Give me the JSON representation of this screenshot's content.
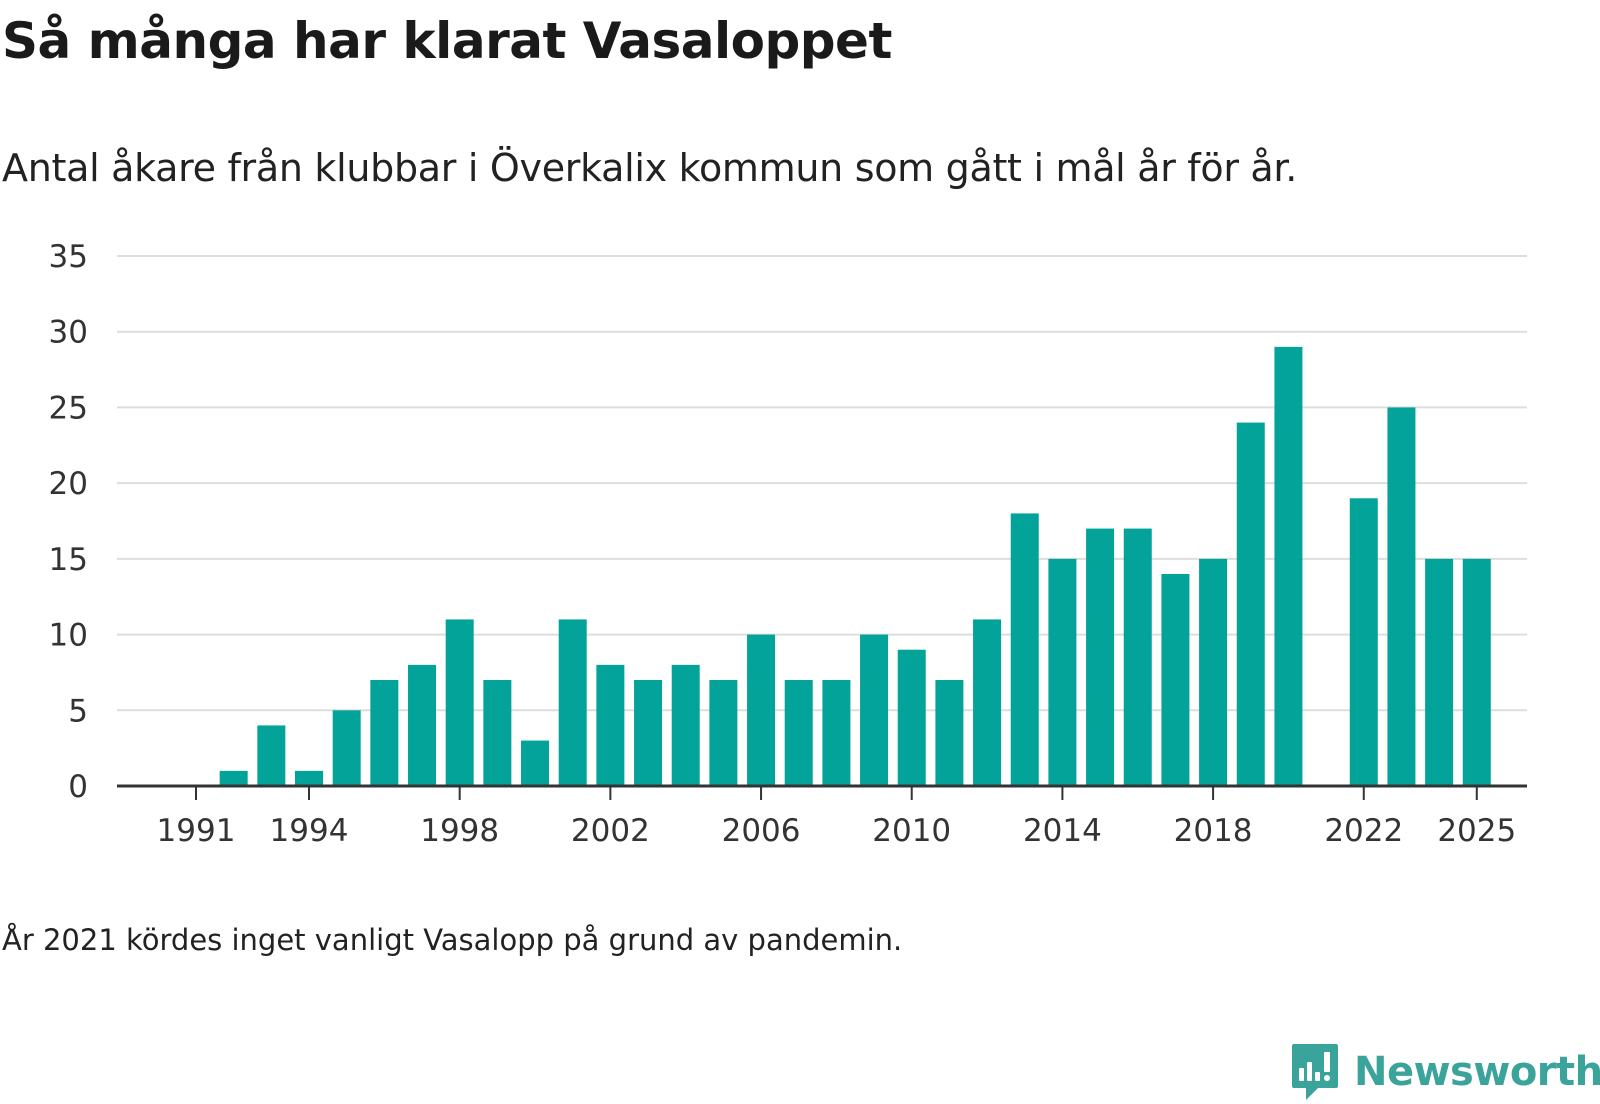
{
  "header": {
    "title": "Så många har klarat Vasaloppet",
    "subtitle": "Antal åkare från klubbar i Överkalix kommun som gått i mål år för år."
  },
  "footer": {
    "note": "År 2021 kördes inget vanligt Vasalopp på grund av pandemin.",
    "brand": "Newsworthy"
  },
  "colors": {
    "bar": "#03a39a",
    "grid": "#dddddd",
    "axis": "#333333",
    "brand": "#3aa39a"
  },
  "chart_data": {
    "type": "bar",
    "title": "Så många har klarat Vasaloppet",
    "subtitle": "Antal åkare från klubbar i Överkalix kommun som gått i mål år för år.",
    "xlabel": "",
    "ylabel": "",
    "categories": [
      1991,
      1992,
      1993,
      1994,
      1995,
      1996,
      1997,
      1998,
      1999,
      2000,
      2001,
      2002,
      2003,
      2004,
      2005,
      2006,
      2007,
      2008,
      2009,
      2010,
      2011,
      2012,
      2013,
      2014,
      2015,
      2016,
      2017,
      2018,
      2019,
      2020,
      2021,
      2022,
      2023,
      2024,
      2025
    ],
    "values": [
      0,
      1,
      4,
      1,
      5,
      7,
      8,
      11,
      7,
      3,
      11,
      8,
      7,
      8,
      7,
      10,
      7,
      7,
      10,
      9,
      7,
      11,
      18,
      15,
      17,
      17,
      14,
      15,
      24,
      29,
      null,
      19,
      25,
      15,
      15
    ],
    "x_ticks": [
      1991,
      1994,
      1998,
      2002,
      2006,
      2010,
      2014,
      2018,
      2022,
      2025
    ],
    "y_ticks": [
      0,
      5,
      10,
      15,
      20,
      25,
      30,
      35
    ],
    "ylim": [
      0,
      35
    ],
    "grid": true
  }
}
